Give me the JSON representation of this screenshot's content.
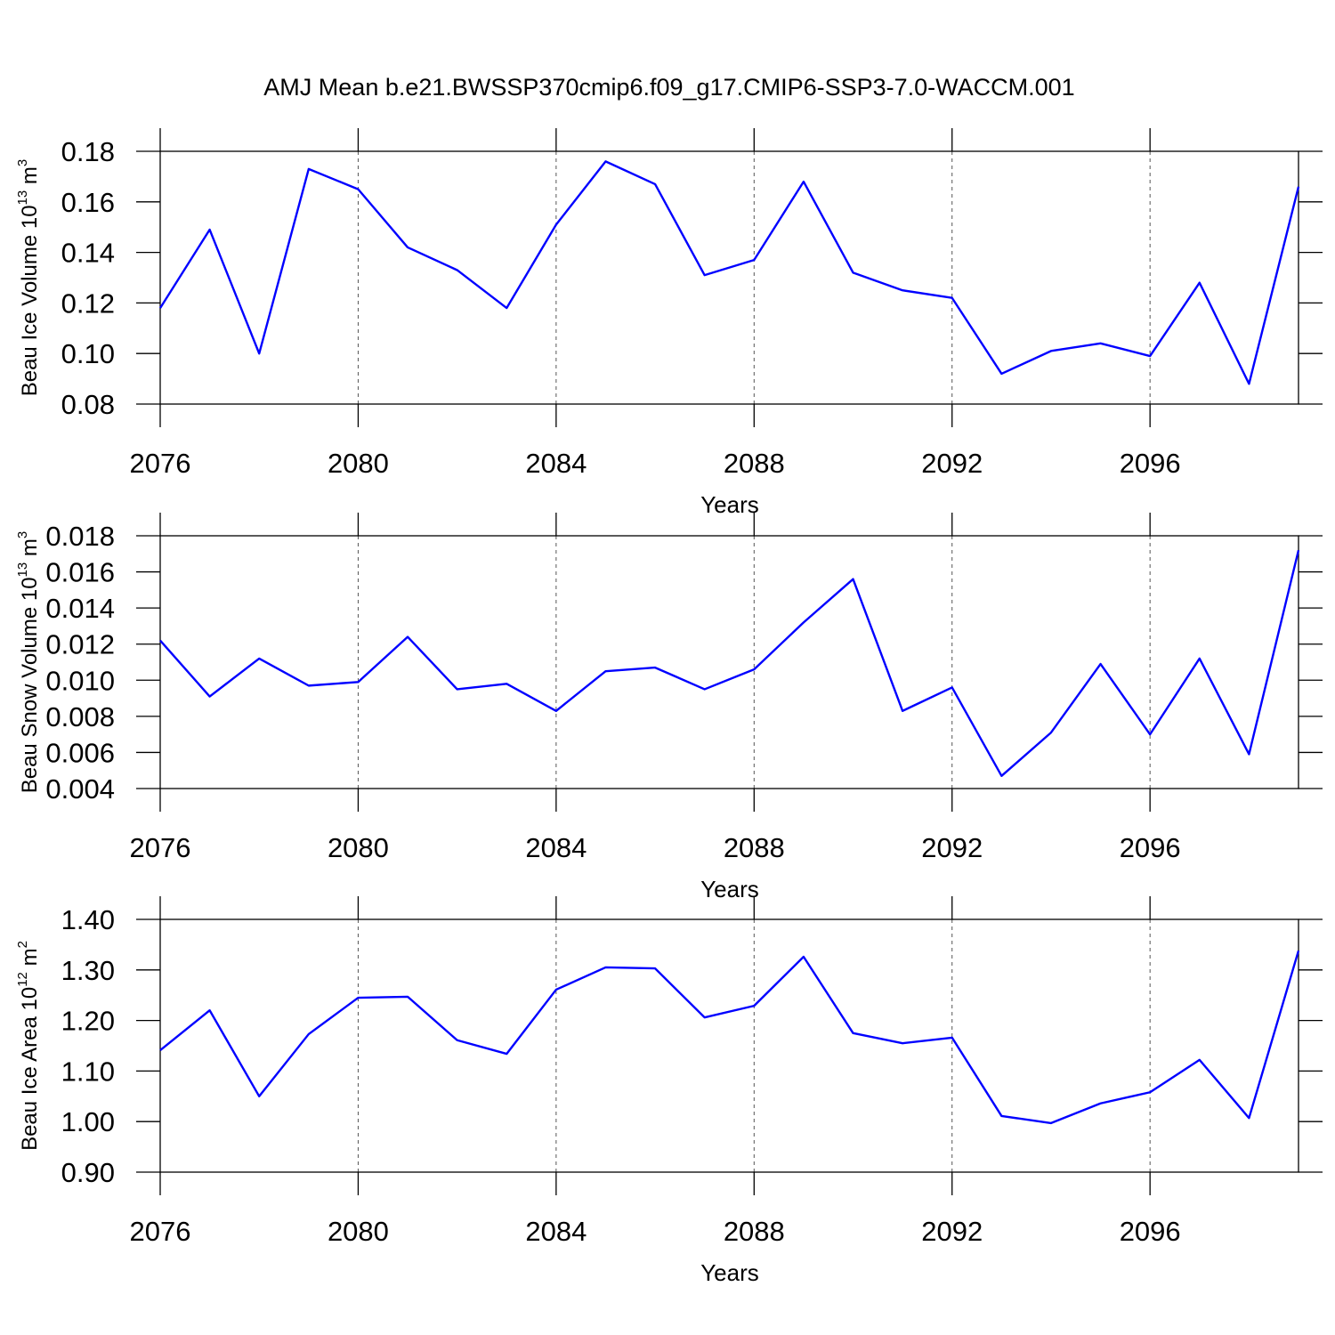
{
  "title": "AMJ Mean b.e21.BWSSP370cmip6.f09_g17.CMIP6-SSP3-7.0-WACCM.001",
  "chart_data": [
    {
      "type": "line",
      "xlabel": "Years",
      "ylabel": [
        "Beau Ice Volume 10",
        "13",
        " m",
        "3"
      ],
      "x": [
        2076,
        2077,
        2078,
        2079,
        2080,
        2081,
        2082,
        2083,
        2084,
        2085,
        2086,
        2087,
        2088,
        2089,
        2090,
        2091,
        2092,
        2093,
        2094,
        2095,
        2096,
        2097,
        2098,
        2099
      ],
      "values": [
        0.118,
        0.149,
        0.1,
        0.173,
        0.165,
        0.142,
        0.133,
        0.118,
        0.151,
        0.176,
        0.167,
        0.131,
        0.137,
        0.168,
        0.132,
        0.125,
        0.122,
        0.092,
        0.101,
        0.104,
        0.099,
        0.128,
        0.088,
        0.166
      ],
      "color": "#0000ff",
      "xlim": [
        2076,
        2099
      ],
      "xticks": [
        2076,
        2080,
        2084,
        2088,
        2092,
        2096
      ],
      "ylim": [
        0.08,
        0.18
      ],
      "yticks": [
        0.08,
        {
          "value": 0.1,
          "label": "0.10"
        },
        0.12,
        0.14,
        0.16,
        0.18
      ],
      "grid": true
    },
    {
      "type": "line",
      "xlabel": "Years",
      "ylabel": [
        "Beau Snow Volume 10",
        "13",
        " m",
        "3"
      ],
      "x": [
        2076,
        2077,
        2078,
        2079,
        2080,
        2081,
        2082,
        2083,
        2084,
        2085,
        2086,
        2087,
        2088,
        2089,
        2090,
        2091,
        2092,
        2093,
        2094,
        2095,
        2096,
        2097,
        2098,
        2099
      ],
      "values": [
        0.0122,
        0.0091,
        0.0112,
        0.0097,
        0.0099,
        0.0124,
        0.0095,
        0.0098,
        0.0083,
        0.0105,
        0.0107,
        0.0095,
        0.0106,
        0.0132,
        0.0156,
        0.0083,
        0.0096,
        0.0047,
        0.0071,
        0.0109,
        0.007,
        0.0112,
        0.0059,
        0.0172
      ],
      "color": "#0000ff",
      "xlim": [
        2076,
        2099
      ],
      "xticks": [
        2076,
        2080,
        2084,
        2088,
        2092,
        2096
      ],
      "ylim": [
        0.004,
        0.018
      ],
      "yticks": [
        0.004,
        0.006,
        0.008,
        {
          "value": 0.01,
          "label": "0.010"
        },
        0.012,
        0.014,
        0.016,
        0.018
      ],
      "grid": true
    },
    {
      "type": "line",
      "xlabel": "Years",
      "ylabel": [
        "Beau Ice Area 10",
        "12",
        " m",
        "2"
      ],
      "x": [
        2076,
        2077,
        2078,
        2079,
        2080,
        2081,
        2082,
        2083,
        2084,
        2085,
        2086,
        2087,
        2088,
        2089,
        2090,
        2091,
        2092,
        2093,
        2094,
        2095,
        2096,
        2097,
        2098,
        2099
      ],
      "values": [
        1.141,
        1.22,
        1.05,
        1.173,
        1.245,
        1.247,
        1.161,
        1.134,
        1.261,
        1.305,
        1.303,
        1.206,
        1.229,
        1.326,
        1.175,
        1.155,
        1.166,
        1.011,
        0.997,
        1.036,
        1.058,
        1.122,
        1.007,
        1.338
      ],
      "color": "#0000ff",
      "xlim": [
        2076,
        2099
      ],
      "xticks": [
        2076,
        2080,
        2084,
        2088,
        2092,
        2096
      ],
      "ylim": [
        0.9,
        1.4
      ],
      "yticks": [
        {
          "value": 0.9,
          "label": "0.90"
        },
        {
          "value": 1,
          "label": "1.00"
        },
        {
          "value": 1.1,
          "label": "1.10"
        },
        {
          "value": 1.2,
          "label": "1.20"
        },
        {
          "value": 1.3,
          "label": "1.30"
        },
        {
          "value": 1.4,
          "label": "1.40"
        }
      ],
      "grid": true
    }
  ]
}
